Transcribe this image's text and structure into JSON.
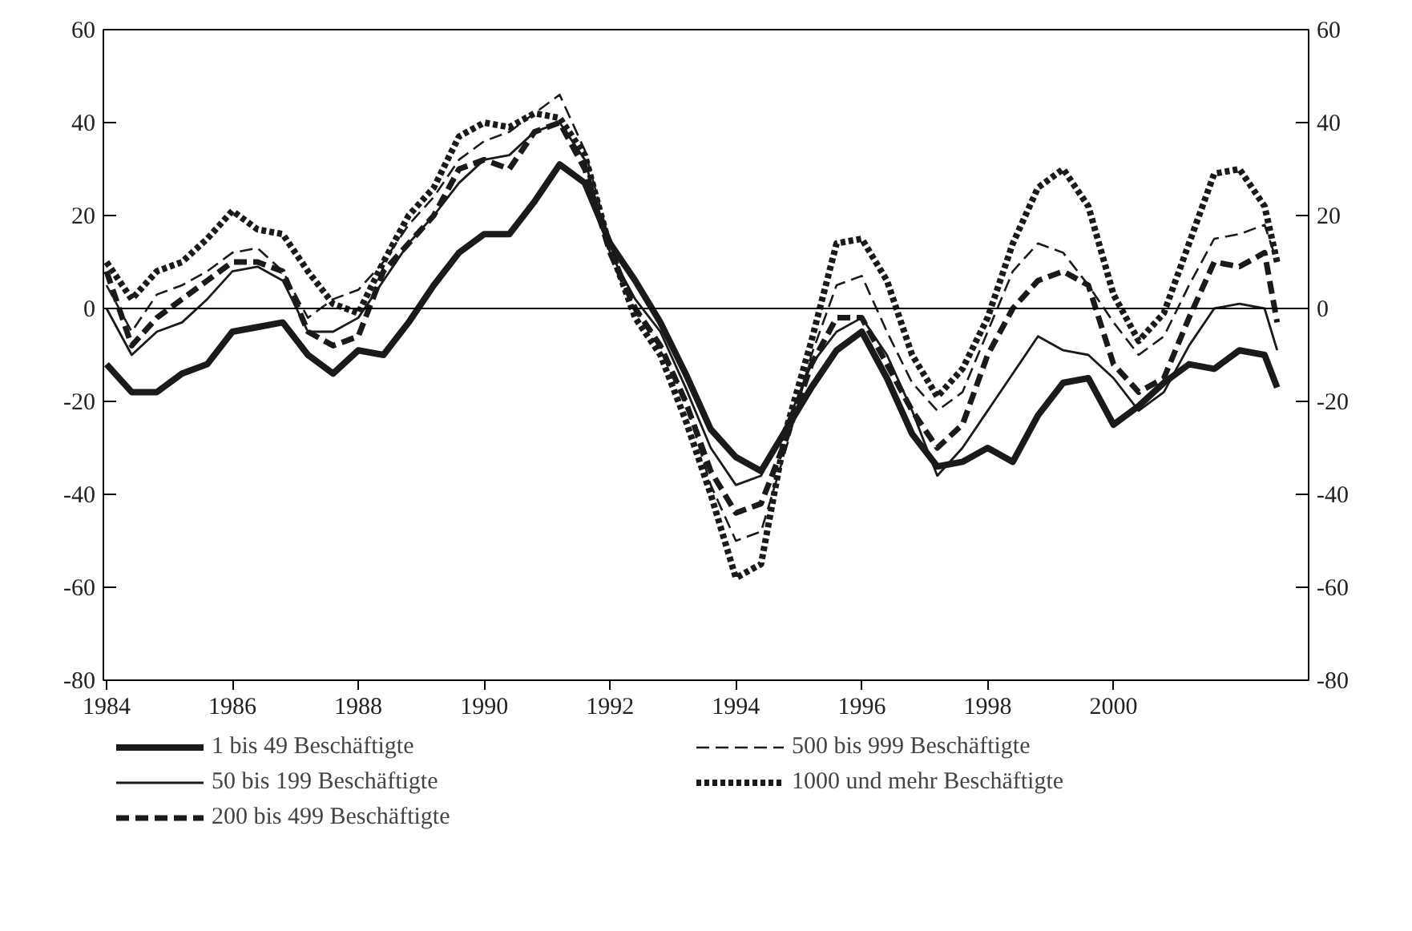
{
  "chart_data": {
    "type": "line",
    "x": [
      1984.0,
      1984.4,
      1984.8,
      1985.2,
      1985.6,
      1986.0,
      1986.4,
      1986.8,
      1987.2,
      1987.6,
      1988.0,
      1988.4,
      1988.8,
      1989.2,
      1989.6,
      1990.0,
      1990.4,
      1990.8,
      1991.2,
      1991.6,
      1992.0,
      1992.4,
      1992.8,
      1993.2,
      1993.6,
      1994.0,
      1994.4,
      1994.8,
      1995.2,
      1995.6,
      1996.0,
      1996.4,
      1996.8,
      1997.2,
      1997.6,
      1998.0,
      1998.4,
      1998.8,
      1999.2,
      1999.6,
      2000.0,
      2000.4,
      2000.8,
      2001.2,
      2001.6,
      2002.0,
      2002.4,
      2002.6
    ],
    "series": [
      {
        "name": "1 bis 49 Beschäftigte",
        "color": "#1a1a1a",
        "line_style": "solid",
        "values": [
          -12,
          -18,
          -18,
          -14,
          -12,
          -5,
          -4,
          -3,
          -10,
          -14,
          -9,
          -10,
          -3,
          5,
          12,
          16,
          16,
          23,
          31,
          27,
          14,
          6,
          -3,
          -14,
          -26,
          -32,
          -35,
          -26,
          -17,
          -9,
          -5,
          -15,
          -27,
          -34,
          -33,
          -30,
          -33,
          -23,
          -16,
          -15,
          -25,
          -21,
          -16,
          -12,
          -13,
          -9,
          -10,
          -17
        ]
      },
      {
        "name": "50 bis 199 Beschäftigte",
        "color": "#1a1a1a",
        "line_style": "solid",
        "values": [
          0,
          -10,
          -5,
          -3,
          2,
          8,
          9,
          6,
          -5,
          -5,
          -2,
          6,
          14,
          20,
          27,
          32,
          33,
          38,
          40,
          32,
          12,
          2,
          -5,
          -17,
          -30,
          -38,
          -36,
          -25,
          -12,
          -5,
          -2,
          -10,
          -22,
          -36,
          -30,
          -22,
          -14,
          -6,
          -9,
          -10,
          -15,
          -22,
          -18,
          -8,
          0,
          1,
          0,
          -9
        ]
      },
      {
        "name": "200 bis 499 Beschäftigte",
        "color": "#1a1a1a",
        "line_style": "dashed",
        "values": [
          8,
          -8,
          -2,
          2,
          6,
          10,
          10,
          8,
          -5,
          -8,
          -6,
          8,
          14,
          20,
          30,
          32,
          30,
          38,
          40,
          30,
          12,
          0,
          -8,
          -20,
          -35,
          -44,
          -42,
          -28,
          -12,
          -2,
          -2,
          -12,
          -22,
          -30,
          -25,
          -10,
          0,
          6,
          8,
          5,
          -12,
          -18,
          -15,
          -2,
          10,
          9,
          12,
          -3
        ]
      },
      {
        "name": "500 bis 999 Beschäftigte",
        "color": "#1a1a1a",
        "line_style": "dashed",
        "values": [
          5,
          -5,
          3,
          5,
          8,
          12,
          13,
          8,
          -2,
          2,
          4,
          10,
          18,
          24,
          32,
          36,
          38,
          42,
          46,
          34,
          14,
          0,
          -8,
          -20,
          -38,
          -50,
          -48,
          -30,
          -10,
          5,
          7,
          -5,
          -16,
          -22,
          -18,
          -5,
          8,
          14,
          12,
          5,
          -3,
          -10,
          -6,
          5,
          15,
          16,
          18,
          10
        ]
      },
      {
        "name": "1000 und mehr Beschäftigte",
        "color": "#1a1a1a",
        "line_style": "dotted",
        "values": [
          10,
          2,
          8,
          10,
          15,
          21,
          17,
          16,
          8,
          1,
          -1,
          10,
          20,
          26,
          37,
          40,
          39,
          42,
          41,
          33,
          13,
          -2,
          -10,
          -24,
          -40,
          -58,
          -55,
          -26,
          -7,
          14,
          15,
          6,
          -10,
          -19,
          -13,
          -2,
          14,
          26,
          30,
          22,
          3,
          -7,
          -1,
          14,
          29,
          30,
          22,
          10
        ]
      }
    ],
    "xlim": [
      1983.95,
      2003.1
    ],
    "xticks": [
      1984,
      1986,
      1988,
      1990,
      1992,
      1994,
      1996,
      1998,
      2000
    ],
    "ylim": [
      -80,
      60
    ],
    "yticks": [
      -80,
      -60,
      -40,
      -20,
      0,
      20,
      40,
      60
    ],
    "y2lim": [
      -80,
      60
    ],
    "y2ticks": [
      -80,
      -60,
      -40,
      -20,
      0,
      20,
      40,
      60
    ],
    "ref_lines": [
      {
        "axis": "y",
        "value": 0,
        "color": "#000000",
        "line_style": "solid"
      }
    ],
    "grid": false,
    "legend": "bottom"
  }
}
